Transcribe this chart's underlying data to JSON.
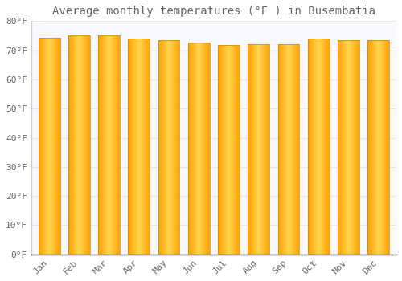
{
  "title": "Average monthly temperatures (°F ) in Busembatia",
  "months": [
    "Jan",
    "Feb",
    "Mar",
    "Apr",
    "May",
    "Jun",
    "Jul",
    "Aug",
    "Sep",
    "Oct",
    "Nov",
    "Dec"
  ],
  "values": [
    74.3,
    75.0,
    75.0,
    73.9,
    73.4,
    72.7,
    71.8,
    72.1,
    72.1,
    73.9,
    73.4,
    73.6
  ],
  "bar_color_center": "#FFD54F",
  "bar_color_edge": "#FFA000",
  "bar_edge_color": "#CC8800",
  "background_color": "#ffffff",
  "plot_bg_color": "#f8f8ff",
  "grid_color": "#e8e8e8",
  "ylim": [
    0,
    80
  ],
  "yticks": [
    0,
    10,
    20,
    30,
    40,
    50,
    60,
    70,
    80
  ],
  "ytick_labels": [
    "0°F",
    "10°F",
    "20°F",
    "30°F",
    "40°F",
    "50°F",
    "60°F",
    "70°F",
    "80°F"
  ],
  "title_fontsize": 10,
  "tick_fontsize": 8,
  "font_color": "#666666",
  "font_family": "monospace",
  "bar_width": 0.72
}
